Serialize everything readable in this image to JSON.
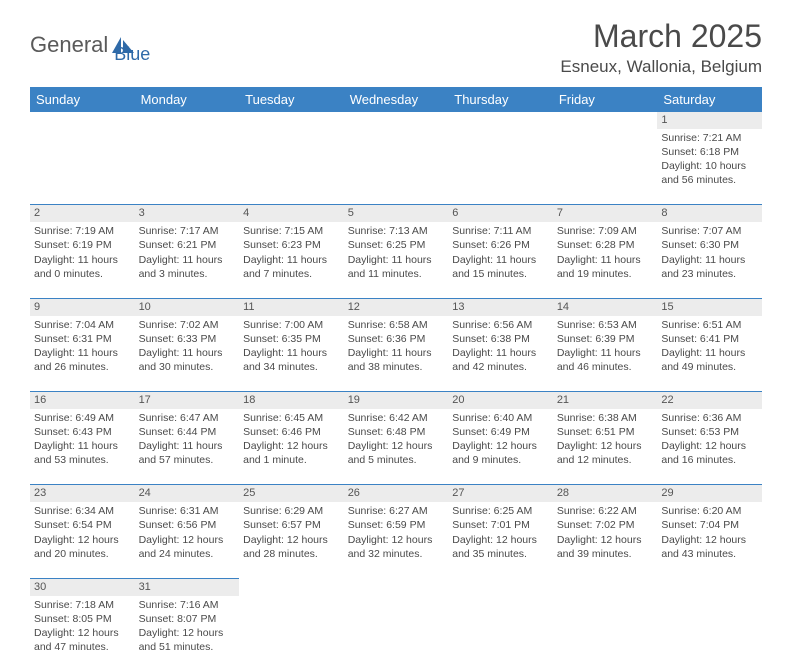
{
  "brand": {
    "part1": "General",
    "part2": "Blue"
  },
  "title": "March 2025",
  "subtitle": "Esneux, Wallonia, Belgium",
  "day_headers": [
    "Sunday",
    "Monday",
    "Tuesday",
    "Wednesday",
    "Thursday",
    "Friday",
    "Saturday"
  ],
  "colors": {
    "header_bg": "#3b82c4",
    "header_text": "#ffffff",
    "daynum_bg": "#ececec",
    "border": "#3b82c4",
    "text": "#4a4a4a",
    "logo_gray": "#5a5a5a",
    "logo_blue": "#2f6aa8"
  },
  "typography": {
    "title_fontsize": 32,
    "subtitle_fontsize": 17,
    "header_fontsize": 13,
    "cell_fontsize": 10.5,
    "daynum_fontsize": 11
  },
  "weeks": [
    [
      null,
      null,
      null,
      null,
      null,
      null,
      {
        "n": "1",
        "sunrise": "Sunrise: 7:21 AM",
        "sunset": "Sunset: 6:18 PM",
        "daylight": "Daylight: 10 hours and 56 minutes."
      }
    ],
    [
      {
        "n": "2",
        "sunrise": "Sunrise: 7:19 AM",
        "sunset": "Sunset: 6:19 PM",
        "daylight": "Daylight: 11 hours and 0 minutes."
      },
      {
        "n": "3",
        "sunrise": "Sunrise: 7:17 AM",
        "sunset": "Sunset: 6:21 PM",
        "daylight": "Daylight: 11 hours and 3 minutes."
      },
      {
        "n": "4",
        "sunrise": "Sunrise: 7:15 AM",
        "sunset": "Sunset: 6:23 PM",
        "daylight": "Daylight: 11 hours and 7 minutes."
      },
      {
        "n": "5",
        "sunrise": "Sunrise: 7:13 AM",
        "sunset": "Sunset: 6:25 PM",
        "daylight": "Daylight: 11 hours and 11 minutes."
      },
      {
        "n": "6",
        "sunrise": "Sunrise: 7:11 AM",
        "sunset": "Sunset: 6:26 PM",
        "daylight": "Daylight: 11 hours and 15 minutes."
      },
      {
        "n": "7",
        "sunrise": "Sunrise: 7:09 AM",
        "sunset": "Sunset: 6:28 PM",
        "daylight": "Daylight: 11 hours and 19 minutes."
      },
      {
        "n": "8",
        "sunrise": "Sunrise: 7:07 AM",
        "sunset": "Sunset: 6:30 PM",
        "daylight": "Daylight: 11 hours and 23 minutes."
      }
    ],
    [
      {
        "n": "9",
        "sunrise": "Sunrise: 7:04 AM",
        "sunset": "Sunset: 6:31 PM",
        "daylight": "Daylight: 11 hours and 26 minutes."
      },
      {
        "n": "10",
        "sunrise": "Sunrise: 7:02 AM",
        "sunset": "Sunset: 6:33 PM",
        "daylight": "Daylight: 11 hours and 30 minutes."
      },
      {
        "n": "11",
        "sunrise": "Sunrise: 7:00 AM",
        "sunset": "Sunset: 6:35 PM",
        "daylight": "Daylight: 11 hours and 34 minutes."
      },
      {
        "n": "12",
        "sunrise": "Sunrise: 6:58 AM",
        "sunset": "Sunset: 6:36 PM",
        "daylight": "Daylight: 11 hours and 38 minutes."
      },
      {
        "n": "13",
        "sunrise": "Sunrise: 6:56 AM",
        "sunset": "Sunset: 6:38 PM",
        "daylight": "Daylight: 11 hours and 42 minutes."
      },
      {
        "n": "14",
        "sunrise": "Sunrise: 6:53 AM",
        "sunset": "Sunset: 6:39 PM",
        "daylight": "Daylight: 11 hours and 46 minutes."
      },
      {
        "n": "15",
        "sunrise": "Sunrise: 6:51 AM",
        "sunset": "Sunset: 6:41 PM",
        "daylight": "Daylight: 11 hours and 49 minutes."
      }
    ],
    [
      {
        "n": "16",
        "sunrise": "Sunrise: 6:49 AM",
        "sunset": "Sunset: 6:43 PM",
        "daylight": "Daylight: 11 hours and 53 minutes."
      },
      {
        "n": "17",
        "sunrise": "Sunrise: 6:47 AM",
        "sunset": "Sunset: 6:44 PM",
        "daylight": "Daylight: 11 hours and 57 minutes."
      },
      {
        "n": "18",
        "sunrise": "Sunrise: 6:45 AM",
        "sunset": "Sunset: 6:46 PM",
        "daylight": "Daylight: 12 hours and 1 minute."
      },
      {
        "n": "19",
        "sunrise": "Sunrise: 6:42 AM",
        "sunset": "Sunset: 6:48 PM",
        "daylight": "Daylight: 12 hours and 5 minutes."
      },
      {
        "n": "20",
        "sunrise": "Sunrise: 6:40 AM",
        "sunset": "Sunset: 6:49 PM",
        "daylight": "Daylight: 12 hours and 9 minutes."
      },
      {
        "n": "21",
        "sunrise": "Sunrise: 6:38 AM",
        "sunset": "Sunset: 6:51 PM",
        "daylight": "Daylight: 12 hours and 12 minutes."
      },
      {
        "n": "22",
        "sunrise": "Sunrise: 6:36 AM",
        "sunset": "Sunset: 6:53 PM",
        "daylight": "Daylight: 12 hours and 16 minutes."
      }
    ],
    [
      {
        "n": "23",
        "sunrise": "Sunrise: 6:34 AM",
        "sunset": "Sunset: 6:54 PM",
        "daylight": "Daylight: 12 hours and 20 minutes."
      },
      {
        "n": "24",
        "sunrise": "Sunrise: 6:31 AM",
        "sunset": "Sunset: 6:56 PM",
        "daylight": "Daylight: 12 hours and 24 minutes."
      },
      {
        "n": "25",
        "sunrise": "Sunrise: 6:29 AM",
        "sunset": "Sunset: 6:57 PM",
        "daylight": "Daylight: 12 hours and 28 minutes."
      },
      {
        "n": "26",
        "sunrise": "Sunrise: 6:27 AM",
        "sunset": "Sunset: 6:59 PM",
        "daylight": "Daylight: 12 hours and 32 minutes."
      },
      {
        "n": "27",
        "sunrise": "Sunrise: 6:25 AM",
        "sunset": "Sunset: 7:01 PM",
        "daylight": "Daylight: 12 hours and 35 minutes."
      },
      {
        "n": "28",
        "sunrise": "Sunrise: 6:22 AM",
        "sunset": "Sunset: 7:02 PM",
        "daylight": "Daylight: 12 hours and 39 minutes."
      },
      {
        "n": "29",
        "sunrise": "Sunrise: 6:20 AM",
        "sunset": "Sunset: 7:04 PM",
        "daylight": "Daylight: 12 hours and 43 minutes."
      }
    ],
    [
      {
        "n": "30",
        "sunrise": "Sunrise: 7:18 AM",
        "sunset": "Sunset: 8:05 PM",
        "daylight": "Daylight: 12 hours and 47 minutes."
      },
      {
        "n": "31",
        "sunrise": "Sunrise: 7:16 AM",
        "sunset": "Sunset: 8:07 PM",
        "daylight": "Daylight: 12 hours and 51 minutes."
      },
      null,
      null,
      null,
      null,
      null
    ]
  ]
}
